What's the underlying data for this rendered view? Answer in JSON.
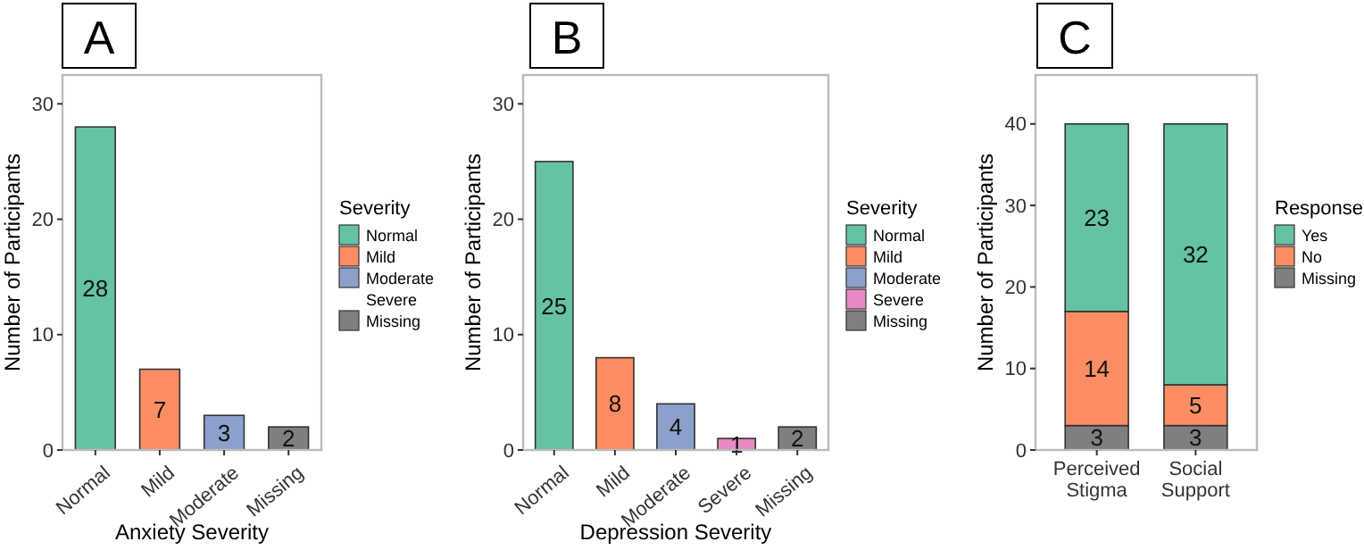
{
  "chart_data": [
    {
      "type": "bar",
      "title": "A",
      "xlabel": "Anxiety Severity",
      "ylabel": "Number of Participants",
      "legend_title": "Severity",
      "categories": [
        "Normal",
        "Mild",
        "Moderate",
        "Missing"
      ],
      "series": [
        {
          "name": "Normal",
          "color": "#66c2a5",
          "values": [
            28,
            null,
            null,
            null
          ]
        },
        {
          "name": "Mild",
          "color": "#fc8d62",
          "values": [
            null,
            7,
            null,
            null
          ]
        },
        {
          "name": "Moderate",
          "color": "#8da0cb",
          "values": [
            null,
            null,
            3,
            null
          ]
        },
        {
          "name": "Severe",
          "values": [
            null,
            null,
            null,
            null
          ]
        },
        {
          "name": "Missing",
          "color": "#7f7f7f",
          "values": [
            null,
            null,
            null,
            2
          ]
        }
      ],
      "ylim": [
        0,
        32.5
      ],
      "yticks": [
        0,
        10,
        20,
        30
      ],
      "data_labels": true,
      "legend": "right",
      "grid": false
    },
    {
      "type": "bar",
      "title": "B",
      "xlabel": "Depression Severity",
      "ylabel": "Number of Participants",
      "legend_title": "Severity",
      "categories": [
        "Normal",
        "Mild",
        "Moderate",
        "Severe",
        "Missing"
      ],
      "series": [
        {
          "name": "Normal",
          "color": "#66c2a5",
          "values": [
            25,
            null,
            null,
            null,
            null
          ]
        },
        {
          "name": "Mild",
          "color": "#fc8d62",
          "values": [
            null,
            8,
            null,
            null,
            null
          ]
        },
        {
          "name": "Moderate",
          "color": "#8da0cb",
          "values": [
            null,
            null,
            4,
            null,
            null
          ]
        },
        {
          "name": "Severe",
          "color": "#e78ac3",
          "values": [
            null,
            null,
            null,
            1,
            null
          ]
        },
        {
          "name": "Missing",
          "color": "#7f7f7f",
          "values": [
            null,
            null,
            null,
            null,
            2
          ]
        }
      ],
      "ylim": [
        0,
        32.5
      ],
      "yticks": [
        0,
        10,
        20,
        30
      ],
      "data_labels": true,
      "legend": "right",
      "grid": false
    },
    {
      "type": "bar",
      "title": "C",
      "ylabel": "Number of Participants",
      "legend_title": "Response",
      "categories": [
        "Perceived Stigma",
        "Social Support"
      ],
      "stacked": true,
      "series": [
        {
          "name": "Missing",
          "color": "#7f7f7f",
          "values": [
            3,
            3
          ]
        },
        {
          "name": "No",
          "color": "#fc8d62",
          "values": [
            14,
            5
          ]
        },
        {
          "name": "Yes",
          "color": "#66c2a5",
          "values": [
            23,
            32
          ]
        }
      ],
      "ylim": [
        0,
        46
      ],
      "yticks": [
        0,
        10,
        20,
        30,
        40
      ],
      "data_labels": true,
      "legend": "right",
      "grid": false
    }
  ]
}
